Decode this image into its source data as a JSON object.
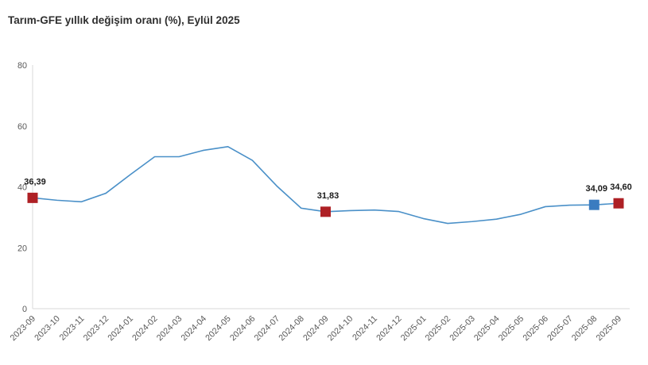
{
  "title": "Tarım-GFE yıllık değişim oranı (%), Eylül 2025",
  "chart_data": {
    "type": "line",
    "title": "Tarım-GFE yıllık değişim oranı (%), Eylül 2025",
    "categories": [
      "2023-09",
      "2023-10",
      "2023-11",
      "2023-12",
      "2024-01",
      "2024-02",
      "2024-03",
      "2024-04",
      "2024-05",
      "2024-06",
      "2024-07",
      "2024-08",
      "2024-09",
      "2024-10",
      "2024-11",
      "2024-12",
      "2025-01",
      "2025-02",
      "2025-03",
      "2025-04",
      "2025-05",
      "2025-06",
      "2025-07",
      "2025-08",
      "2025-09"
    ],
    "values": [
      36.39,
      35.6,
      35.1,
      37.9,
      44.0,
      49.9,
      49.9,
      52.0,
      53.2,
      48.7,
      40.3,
      33.0,
      31.83,
      32.2,
      32.4,
      31.9,
      29.6,
      28.0,
      28.6,
      29.4,
      31.0,
      33.5,
      34.0,
      34.09,
      34.6
    ],
    "ylim": [
      0,
      80
    ],
    "yticks": [
      0,
      20,
      40,
      60,
      80
    ],
    "grid": false,
    "legend": "none",
    "line_color": "#4a90c8",
    "axis_color": "#d9d9d9",
    "tick_label_color": "#595959",
    "value_label_color": "#1a1a1a",
    "highlight_red": "#ae2025",
    "highlight_blue": "#3a7cc0",
    "highlights": [
      {
        "index": 0,
        "category": "2023-09",
        "value": 36.39,
        "label": "36,39",
        "color": "#ae2025"
      },
      {
        "index": 12,
        "category": "2024-09",
        "value": 31.83,
        "label": "31,83",
        "color": "#ae2025"
      },
      {
        "index": 23,
        "category": "2025-08",
        "value": 34.09,
        "label": "34,09",
        "color": "#3a7cc0"
      },
      {
        "index": 24,
        "category": "2025-09",
        "value": 34.6,
        "label": "34,60",
        "color": "#ae2025"
      }
    ]
  }
}
